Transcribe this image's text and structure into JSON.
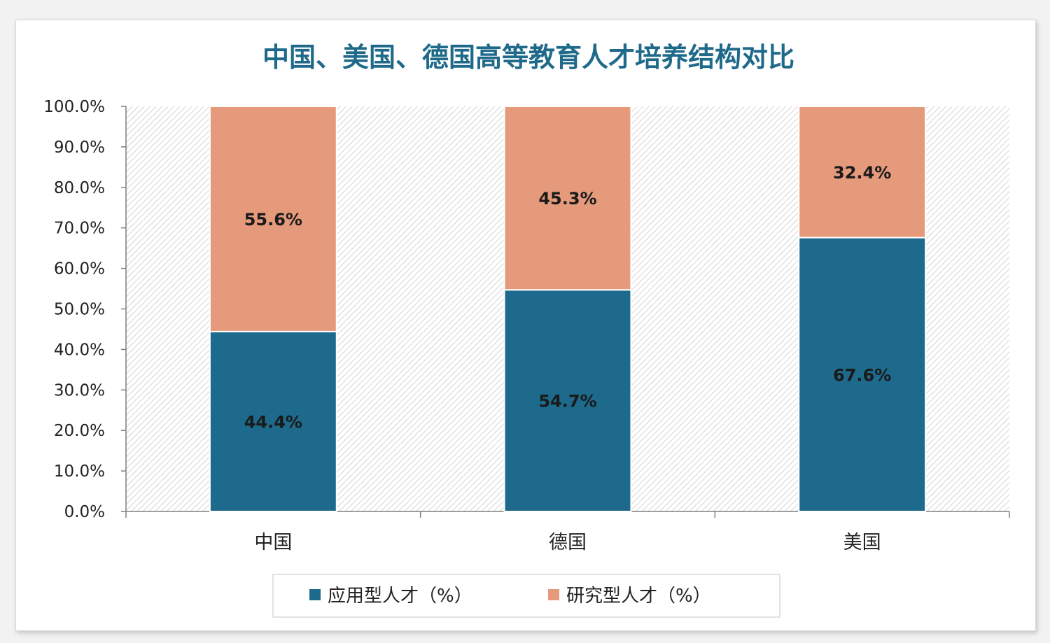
{
  "chart_data": {
    "type": "bar",
    "stacked": true,
    "title": "中国、美国、德国高等教育人才培养结构对比",
    "categories": [
      "中国",
      "德国",
      "美国"
    ],
    "series": [
      {
        "name": "应用型人才（%）",
        "color": "#1d6a8c",
        "values": [
          44.4,
          54.7,
          67.6
        ],
        "labels": [
          "44.4%",
          "54.7%",
          "67.6%"
        ]
      },
      {
        "name": "研究型人才（%）",
        "color": "#e59a7c",
        "values": [
          55.6,
          45.3,
          32.4
        ],
        "labels": [
          "55.6%",
          "45.3%",
          "32.4%"
        ]
      }
    ],
    "ylim": [
      0,
      100
    ],
    "yticks": [
      0,
      10,
      20,
      30,
      40,
      50,
      60,
      70,
      80,
      90,
      100
    ],
    "ytick_labels": [
      "0.0%",
      "10.0%",
      "20.0%",
      "30.0%",
      "40.0%",
      "50.0%",
      "60.0%",
      "70.0%",
      "80.0%",
      "90.0%",
      "100.0%"
    ],
    "legend_position": "bottom",
    "plot_background": "diagonal-hatch"
  }
}
